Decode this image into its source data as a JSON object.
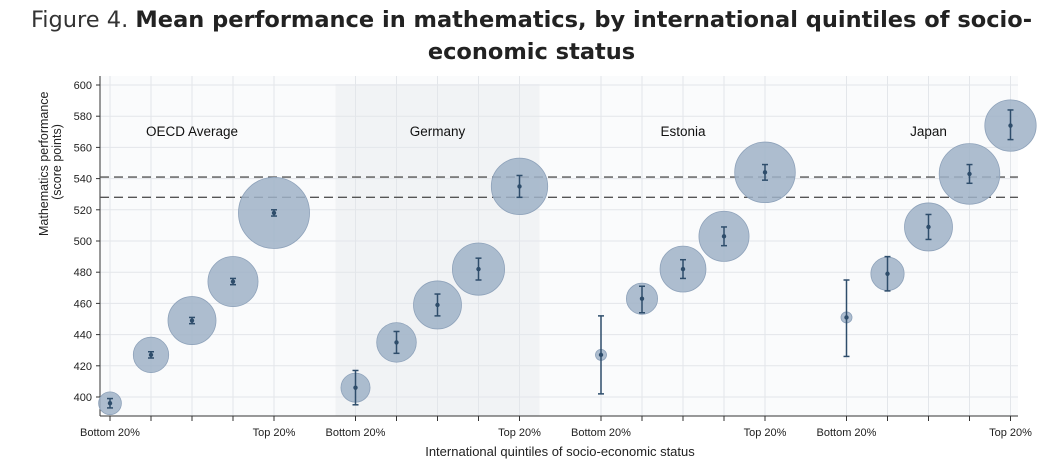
{
  "figure": {
    "prefix": "Figure 4.",
    "title_line1": "Mean performance in mathematics, by international quintiles of socio-",
    "title_line2": "economic status"
  },
  "chart_data": {
    "type": "scatter",
    "title": "Mean performance in mathematics, by international quintiles of socio-economic status",
    "xlabel": "International quintiles of socio-economic status",
    "ylabel": "Mathematics performance (score points)",
    "ylabel_lines": [
      "Mathematics performance",
      "(score points)"
    ],
    "ylim": [
      390,
      605
    ],
    "yticks": [
      400,
      420,
      440,
      460,
      480,
      500,
      520,
      540,
      560,
      580,
      600
    ],
    "grid": true,
    "reference_lines": [
      541,
      528
    ],
    "highlight_group": "Germany",
    "quintile_tick_labels": [
      "Bottom 20%",
      "",
      "",
      "",
      "Top 20%"
    ],
    "groups": [
      {
        "name": "OECD Average",
        "points": [
          {
            "quintile": 1,
            "mean": 396,
            "ci": [
              393,
              399
            ],
            "share": 0.4
          },
          {
            "quintile": 2,
            "mean": 427,
            "ci": [
              425,
              429
            ],
            "share": 0.7
          },
          {
            "quintile": 3,
            "mean": 449,
            "ci": [
              447,
              451
            ],
            "share": 1.0
          },
          {
            "quintile": 4,
            "mean": 474,
            "ci": [
              472,
              476
            ],
            "share": 1.05
          },
          {
            "quintile": 5,
            "mean": 518,
            "ci": [
              516,
              520
            ],
            "share": 1.55
          }
        ]
      },
      {
        "name": "Germany",
        "points": [
          {
            "quintile": 1,
            "mean": 406,
            "ci": [
              395,
              417
            ],
            "share": 0.55
          },
          {
            "quintile": 2,
            "mean": 435,
            "ci": [
              428,
              442
            ],
            "share": 0.8
          },
          {
            "quintile": 3,
            "mean": 459,
            "ci": [
              452,
              466
            ],
            "share": 1.0
          },
          {
            "quintile": 4,
            "mean": 482,
            "ci": [
              475,
              489
            ],
            "share": 1.1
          },
          {
            "quintile": 5,
            "mean": 535,
            "ci": [
              528,
              542
            ],
            "share": 1.2
          }
        ]
      },
      {
        "name": "Estonia",
        "points": [
          {
            "quintile": 1,
            "mean": 427,
            "ci": [
              402,
              452
            ],
            "share": 0.12
          },
          {
            "quintile": 2,
            "mean": 463,
            "ci": [
              454,
              471
            ],
            "share": 0.6
          },
          {
            "quintile": 3,
            "mean": 482,
            "ci": [
              476,
              488
            ],
            "share": 0.95
          },
          {
            "quintile": 4,
            "mean": 503,
            "ci": [
              497,
              509
            ],
            "share": 1.05
          },
          {
            "quintile": 5,
            "mean": 544,
            "ci": [
              539,
              549
            ],
            "share": 1.3
          }
        ]
      },
      {
        "name": "Japan",
        "points": [
          {
            "quintile": 1,
            "mean": 451,
            "ci": [
              426,
              475
            ],
            "share": 0.12
          },
          {
            "quintile": 2,
            "mean": 479,
            "ci": [
              468,
              490
            ],
            "share": 0.65
          },
          {
            "quintile": 3,
            "mean": 509,
            "ci": [
              501,
              517
            ],
            "share": 1.0
          },
          {
            "quintile": 4,
            "mean": 543,
            "ci": [
              537,
              549
            ],
            "share": 1.3
          },
          {
            "quintile": 5,
            "mean": 574,
            "ci": [
              565,
              584
            ],
            "share": 1.08
          }
        ]
      }
    ],
    "colors": {
      "bubble": "#9fb1c7",
      "bubble_stroke": "#8ea2ba",
      "error_bar": "#2e4d6b",
      "highlight_band": "#f1f3f5",
      "grid": "#e3e6ea",
      "dashed_line": "#555555"
    }
  }
}
